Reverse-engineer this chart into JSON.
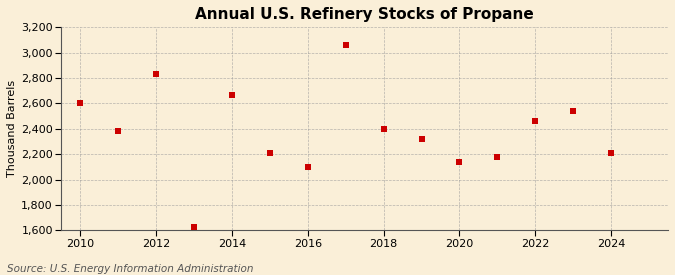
{
  "title": "Annual U.S. Refinery Stocks of Propane",
  "ylabel": "Thousand Barrels",
  "source": "Source: U.S. Energy Information Administration",
  "background_color": "#faefd8",
  "plot_bg_color": "#faefd8",
  "years": [
    2010,
    2011,
    2012,
    2013,
    2014,
    2015,
    2016,
    2017,
    2018,
    2019,
    2020,
    2021,
    2022,
    2023,
    2024
  ],
  "values": [
    2600,
    2380,
    2830,
    1630,
    2670,
    2210,
    2100,
    3060,
    2400,
    2320,
    2140,
    2180,
    2460,
    2540,
    2210
  ],
  "marker_color": "#cc0000",
  "marker": "s",
  "marker_size": 4,
  "xlim": [
    2009.5,
    2025.5
  ],
  "ylim": [
    1600,
    3200
  ],
  "yticks": [
    1600,
    1800,
    2000,
    2200,
    2400,
    2600,
    2800,
    3000,
    3200
  ],
  "xticks": [
    2010,
    2012,
    2014,
    2016,
    2018,
    2020,
    2022,
    2024
  ],
  "title_fontsize": 11,
  "label_fontsize": 8,
  "tick_fontsize": 8,
  "source_fontsize": 7.5
}
